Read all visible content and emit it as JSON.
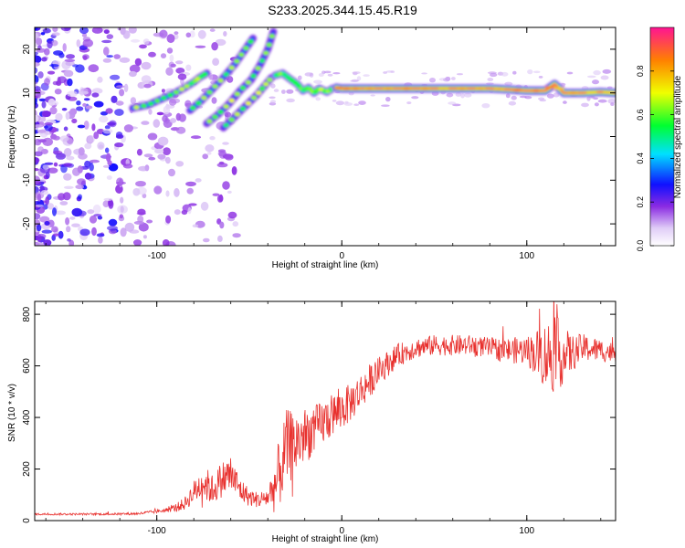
{
  "title": "S233.2025.344.15.45.R19",
  "chart_data": [
    {
      "type": "heatmap",
      "xlabel": "Height of straight line (km)",
      "ylabel": "Frequency (Hz)",
      "xlim": [
        -166,
        148
      ],
      "ylim": [
        -25,
        25
      ],
      "xticks": [
        -100,
        0,
        100
      ],
      "yticks": [
        -20,
        -10,
        0,
        10,
        20
      ],
      "colorbar": {
        "label": "Normalized spectral amplitude",
        "range": [
          0,
          1
        ],
        "ticks": [
          0.0,
          0.2,
          0.4,
          0.6,
          0.8
        ]
      },
      "ridges": [
        {
          "x": [
            -113,
            -105,
            -98,
            -91,
            -85,
            -80,
            -77,
            -73
          ],
          "y": [
            6.5,
            7.2,
            8.5,
            9.8,
            11.2,
            12.5,
            13.5,
            14.5
          ],
          "amplitude": 0.25
        },
        {
          "x": [
            -82,
            -76,
            -70,
            -64,
            -58,
            -53,
            -48
          ],
          "y": [
            6.0,
            8.2,
            10.8,
            13.5,
            16.5,
            19.5,
            22.5
          ],
          "amplitude": 0.22
        },
        {
          "x": [
            -73,
            -67,
            -61,
            -55,
            -49,
            -44,
            -40,
            -37
          ],
          "y": [
            3.0,
            5.0,
            7.5,
            10.5,
            13.0,
            16.5,
            20.0,
            24.0
          ],
          "amplitude": 0.2
        },
        {
          "x": [
            -64,
            -58,
            -52,
            -46,
            -42,
            -38
          ],
          "y": [
            2.0,
            4.5,
            7.0,
            9.5,
            11.5,
            13.5
          ],
          "amplitude": 0.2
        },
        {
          "x": [
            -36,
            -32,
            -28,
            -24,
            -21,
            -18,
            -15,
            -12,
            -8,
            -5
          ],
          "y": [
            14.0,
            14.5,
            13.2,
            12.0,
            10.5,
            11.2,
            10.0,
            11.0,
            10.2,
            11.0
          ],
          "amplitude": 0.4
        },
        {
          "x": [
            -3,
            0,
            5,
            10,
            20,
            30,
            40,
            50,
            60,
            70,
            80,
            90,
            100,
            110,
            115,
            120,
            130,
            140,
            148
          ],
          "y": [
            11.2,
            11.0,
            11.0,
            11.0,
            11.0,
            11.0,
            11.0,
            11.0,
            11.0,
            11.0,
            11.0,
            10.8,
            10.5,
            10.5,
            12.0,
            10.0,
            10.0,
            10.2,
            10.0
          ],
          "amplitude": 0.95
        }
      ]
    },
    {
      "type": "line",
      "xlabel": "Height of straight line (km)",
      "ylabel": "SNR (10 * v/v)",
      "xlim": [
        -166,
        148
      ],
      "ylim": [
        0,
        850
      ],
      "xticks": [
        -100,
        0,
        100
      ],
      "yticks": [
        0,
        200,
        400,
        600,
        800
      ],
      "series": [
        {
          "color": "#e8312e",
          "x": [
            -166,
            -150,
            -130,
            -110,
            -95,
            -90,
            -85,
            -80,
            -75,
            -70,
            -65,
            -60,
            -55,
            -50,
            -45,
            -40,
            -35,
            -30,
            -25,
            -20,
            -15,
            -10,
            -5,
            0,
            5,
            10,
            15,
            20,
            25,
            30,
            40,
            50,
            60,
            70,
            80,
            90,
            100,
            105,
            110,
            115,
            120,
            125,
            130,
            140,
            148
          ],
          "y": [
            25,
            25,
            25,
            27,
            40,
            50,
            65,
            110,
            150,
            120,
            160,
            180,
            120,
            90,
            80,
            90,
            150,
            280,
            300,
            330,
            350,
            380,
            410,
            430,
            460,
            500,
            540,
            580,
            610,
            640,
            670,
            680,
            680,
            680,
            670,
            660,
            660,
            650,
            640,
            650,
            640,
            650,
            670,
            660,
            650
          ],
          "noise": [
            4,
            4,
            4,
            5,
            8,
            15,
            25,
            45,
            70,
            60,
            70,
            80,
            50,
            35,
            30,
            40,
            130,
            150,
            130,
            110,
            95,
            90,
            85,
            80,
            75,
            70,
            65,
            55,
            50,
            45,
            40,
            40,
            40,
            40,
            40,
            50,
            55,
            90,
            130,
            160,
            110,
            70,
            55,
            45,
            40
          ]
        }
      ]
    }
  ]
}
